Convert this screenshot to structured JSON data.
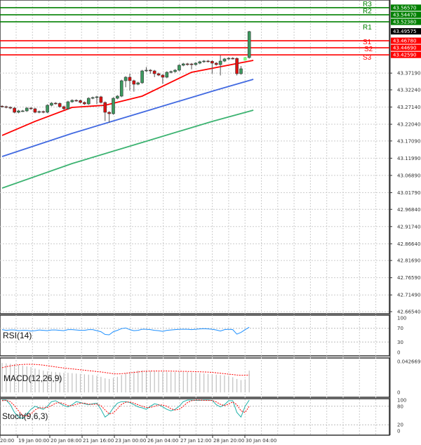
{
  "chart_data": [
    {
      "type": "candlestick",
      "price_ticks": [
        "43.37190",
        "43.32240",
        "43.27140",
        "43.22040",
        "43.17090",
        "43.11990",
        "43.06890",
        "43.01790",
        "42.96840",
        "42.91740",
        "42.86640",
        "42.81690",
        "42.76590",
        "42.71490",
        "42.66540"
      ],
      "ylim": [
        42.6654,
        43.575
      ],
      "grid": true,
      "current_price": {
        "label": "43.49575",
        "value": 43.49575,
        "color": "#000000"
      },
      "levels": [
        {
          "name": "R3",
          "value": 43.5657,
          "label": "43.56570",
          "color": "#008000"
        },
        {
          "name": "R2",
          "value": 43.5447,
          "label": "43.54470",
          "color": "#008000"
        },
        {
          "name": "R1",
          "value": 43.5238,
          "label": "43.52380",
          "color": "#008000"
        },
        {
          "name": "S1",
          "value": 43.4678,
          "label": "43.46780",
          "color": "#ff0000"
        },
        {
          "name": "S2",
          "value": 43.4469,
          "label": "43.44690",
          "color": "#ff0000"
        },
        {
          "name": "S3",
          "value": 43.4259,
          "label": "43.42590",
          "color": "#ff0000"
        }
      ],
      "colors": {
        "up": "#3c9a5f",
        "down": "#e01010",
        "ma_fast": "#ff0000",
        "ma_mid": "#4169e1",
        "ma_slow": "#3cb371"
      },
      "open": [
        43.274,
        43.2725,
        43.2704,
        43.2683,
        43.2559,
        43.26,
        43.26,
        43.2683,
        43.2663,
        43.2559,
        43.258,
        43.256,
        43.2767,
        43.2829,
        43.282,
        43.2725,
        43.2663,
        43.287,
        43.2912,
        43.2905,
        43.285,
        43.2808,
        43.2974,
        43.2995,
        43.3016,
        43.285,
        43.2559,
        43.2517,
        43.2974,
        43.3037,
        43.3494,
        43.3598,
        43.3494,
        43.339,
        43.3432,
        43.3785,
        43.3806,
        43.3785,
        43.3702,
        43.366,
        43.3598,
        43.3744,
        43.3764,
        43.3806,
        43.3952,
        43.3993,
        43.399,
        43.3972,
        43.4014,
        43.4056,
        43.4076,
        43.407,
        43.4014,
        43.3972,
        43.4076,
        43.4139,
        43.4159,
        43.4155,
        43.3702,
        43.41,
        43.418
      ],
      "high": [
        43.277,
        43.2755,
        43.2735,
        43.2713,
        43.263,
        43.263,
        43.2713,
        43.2713,
        43.2693,
        43.261,
        43.261,
        43.2797,
        43.2859,
        43.2859,
        43.285,
        43.2755,
        43.29,
        43.2942,
        43.2942,
        43.2935,
        43.288,
        43.3004,
        43.3025,
        43.3046,
        43.3046,
        43.288,
        43.259,
        43.3004,
        43.3067,
        43.3524,
        43.3628,
        43.37,
        43.3524,
        43.3462,
        43.3815,
        43.39,
        43.3836,
        43.3815,
        43.3732,
        43.369,
        43.3774,
        43.3794,
        43.3836,
        43.3982,
        43.4023,
        43.4023,
        43.402,
        43.4044,
        43.4086,
        43.4106,
        43.4106,
        43.41,
        43.4044,
        43.425,
        43.4169,
        43.4189,
        43.4189,
        43.4185,
        43.393,
        43.42,
        43.497
      ],
      "low": [
        43.2695,
        43.2674,
        43.2653,
        43.2529,
        43.2529,
        43.257,
        43.257,
        43.2633,
        43.2529,
        43.2529,
        43.253,
        43.253,
        43.2737,
        43.279,
        43.2695,
        43.2633,
        43.2633,
        43.284,
        43.2875,
        43.282,
        43.2778,
        43.2778,
        43.2944,
        43.28,
        43.282,
        43.23,
        43.225,
        43.2487,
        43.2944,
        43.3007,
        43.33,
        43.32,
        43.317,
        43.336,
        43.3402,
        43.3755,
        43.37,
        43.36,
        43.363,
        43.34,
        43.3568,
        43.3714,
        43.3734,
        43.3776,
        43.3922,
        43.394,
        43.383,
        43.3942,
        43.3984,
        43.4026,
        43.404,
        43.37,
        43.3942,
        43.365,
        43.4046,
        43.4109,
        43.4125,
        43.365,
        43.3672,
        43.41,
        43.415
      ],
      "close": [
        43.2725,
        43.2704,
        43.2683,
        43.2559,
        43.26,
        43.26,
        43.2683,
        43.2663,
        43.2559,
        43.258,
        43.256,
        43.2767,
        43.2829,
        43.282,
        43.2725,
        43.2663,
        43.287,
        43.2912,
        43.2905,
        43.285,
        43.2808,
        43.2974,
        43.2995,
        43.3016,
        43.285,
        43.2559,
        43.2517,
        43.2974,
        43.3037,
        43.3494,
        43.3598,
        43.3494,
        43.339,
        43.3432,
        43.3785,
        43.3806,
        43.3785,
        43.3702,
        43.366,
        43.3598,
        43.3744,
        43.3764,
        43.3806,
        43.3952,
        43.3993,
        43.399,
        43.3972,
        43.4014,
        43.4056,
        43.4076,
        43.407,
        43.4014,
        43.3972,
        43.4076,
        43.4139,
        43.4159,
        43.4155,
        43.3702,
        43.3848,
        43.418,
        43.495
      ],
      "ma_fast": [
        [
          0,
          43.1873
        ],
        [
          8,
          43.2289
        ],
        [
          17,
          43.2704
        ],
        [
          25,
          43.2767
        ],
        [
          34,
          43.3037
        ],
        [
          46,
          43.3744
        ],
        [
          61,
          43.4097
        ]
      ],
      "ma_mid": [
        [
          0,
          43.1249
        ],
        [
          17,
          43.1935
        ],
        [
          34,
          43.2559
        ],
        [
          51,
          43.3183
        ],
        [
          61,
          43.3536
        ]
      ],
      "ma_slow": [
        [
          0,
          43.0313
        ],
        [
          17,
          43.1041
        ],
        [
          34,
          43.1665
        ],
        [
          51,
          43.2289
        ],
        [
          61,
          43.2621
        ]
      ],
      "x_tick_labels": [
        "20:00",
        "19 Jan 00:00",
        "20 Jan 08:00",
        "21 Jan 16:00",
        "23 Jan 00:00",
        "26 Jan 04:00",
        "27 Jan 12:00",
        "28 Jan 20:00",
        "30 Jan 04:00"
      ]
    },
    {
      "type": "line",
      "title": "RSI(14)",
      "ylim": [
        0,
        100
      ],
      "y_ticks": [
        "100",
        "70",
        "30",
        "0"
      ],
      "color": "#1e90ff",
      "values": [
        66,
        64,
        65,
        65,
        63,
        64,
        64,
        62,
        63,
        65,
        64,
        63,
        65,
        65,
        64,
        63,
        66,
        66,
        65,
        64,
        64,
        66,
        66,
        63,
        60,
        52,
        51,
        60,
        64,
        69,
        71,
        66,
        63,
        64,
        67,
        67,
        66,
        64,
        63,
        61,
        64,
        65,
        66,
        67,
        67,
        67,
        66,
        67,
        68,
        69,
        68,
        67,
        65,
        62,
        66,
        67,
        66,
        53,
        58,
        66,
        73
      ]
    },
    {
      "type": "bar+line",
      "title": "MACD(12,26,9)",
      "ylim": [
        0,
        0.042669
      ],
      "y_ticks": [
        "0.042669",
        "0"
      ],
      "histogram_color": "#c0c0c0",
      "signal_color": "#ff0000",
      "histogram": [
        0.0405,
        0.04,
        0.0395,
        0.039,
        0.038,
        0.037,
        0.036,
        0.035,
        0.033,
        0.0315,
        0.03,
        0.029,
        0.0285,
        0.028,
        0.0275,
        0.027,
        0.027,
        0.0265,
        0.026,
        0.0255,
        0.025,
        0.0245,
        0.024,
        0.023,
        0.0215,
        0.0195,
        0.0185,
        0.02,
        0.0215,
        0.024,
        0.0265,
        0.028,
        0.029,
        0.03,
        0.0305,
        0.03,
        0.0295,
        0.029,
        0.0285,
        0.028,
        0.028,
        0.028,
        0.028,
        0.028,
        0.028,
        0.028,
        0.0275,
        0.027,
        0.0265,
        0.026,
        0.0255,
        0.025,
        0.0245,
        0.024,
        0.0235,
        0.0225,
        0.021,
        0.0185,
        0.017,
        0.018,
        0.03
      ],
      "signal": [
        0.034,
        0.0355,
        0.0365,
        0.0375,
        0.0382,
        0.0386,
        0.0388,
        0.0388,
        0.0386,
        0.0382,
        0.0376,
        0.0368,
        0.036,
        0.0352,
        0.0344,
        0.0336,
        0.033,
        0.0324,
        0.0318,
        0.0312,
        0.0306,
        0.03,
        0.0294,
        0.0288,
        0.0282,
        0.0274,
        0.0266,
        0.0258,
        0.0255,
        0.0258,
        0.0264,
        0.027,
        0.0276,
        0.0282,
        0.0288,
        0.0292,
        0.0294,
        0.0295,
        0.0295,
        0.0295,
        0.0294,
        0.0293,
        0.0292,
        0.0291,
        0.029,
        0.0289,
        0.0288,
        0.0286,
        0.0284,
        0.0282,
        0.028,
        0.0276,
        0.027,
        0.0264,
        0.0258,
        0.0252,
        0.0246,
        0.024,
        0.0236,
        0.0236,
        0.024
      ]
    },
    {
      "type": "line",
      "title": "Stoch(9,6,3)",
      "ylim": [
        0,
        100
      ],
      "y_ticks": [
        "100",
        "80",
        "20",
        "0"
      ],
      "k_color": "#20b2aa",
      "d_color": "#ff0000",
      "k": [
        100,
        100,
        85,
        60,
        45,
        40,
        55,
        70,
        80,
        75,
        70,
        80,
        95,
        98,
        90,
        82,
        78,
        85,
        95,
        92,
        88,
        85,
        88,
        90,
        70,
        45,
        55,
        75,
        90,
        95,
        95,
        92,
        85,
        78,
        75,
        70,
        80,
        88,
        85,
        78,
        70,
        65,
        70,
        80,
        95,
        100,
        100,
        99,
        99,
        100,
        100,
        99,
        85,
        78,
        85,
        98,
        98,
        60,
        45,
        80,
        100
      ],
      "d": [
        98,
        99,
        95,
        82,
        65,
        50,
        48,
        55,
        68,
        75,
        75,
        76,
        82,
        90,
        92,
        88,
        82,
        82,
        86,
        90,
        90,
        87,
        86,
        87,
        82,
        68,
        55,
        58,
        72,
        86,
        93,
        94,
        90,
        85,
        80,
        76,
        76,
        80,
        84,
        84,
        80,
        72,
        68,
        70,
        80,
        92,
        98,
        100,
        100,
        99,
        99,
        99,
        94,
        86,
        82,
        87,
        94,
        85,
        65,
        60,
        80
      ]
    }
  ]
}
